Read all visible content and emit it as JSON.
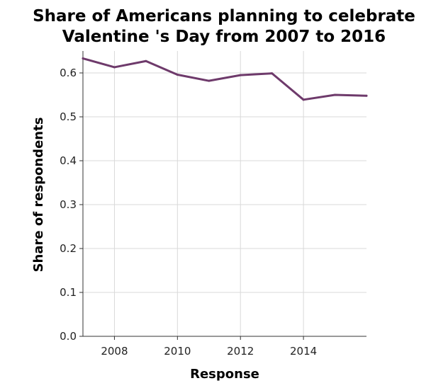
{
  "chart_data": {
    "type": "line",
    "title_lines": [
      "Share of Americans planning to celebrate",
      "Valentine 's Day from 2007 to 2016"
    ],
    "xlabel": "Response",
    "ylabel": "Share of respondents",
    "x": [
      2007,
      2008,
      2009,
      2010,
      2011,
      2012,
      2013,
      2014,
      2015,
      2016
    ],
    "series": [
      {
        "values": [
          0.633,
          0.613,
          0.627,
          0.596,
          0.582,
          0.595,
          0.599,
          0.539,
          0.55,
          0.548
        ],
        "color": "#6e3a6b"
      }
    ],
    "xlim": [
      2007,
      2016
    ],
    "ylim": [
      0,
      0.65
    ],
    "xticks": [
      2008,
      2010,
      2012,
      2014
    ],
    "xtick_labels": [
      "2008",
      "2010",
      "2012",
      "2014"
    ],
    "yticks": [
      0,
      0.1,
      0.2,
      0.3,
      0.4,
      0.5,
      0.6
    ],
    "ytick_labels": [
      "0.0",
      "0.1",
      "0.2",
      "0.3",
      "0.4",
      "0.5",
      "0.6"
    ],
    "grid": true,
    "legend": "none"
  }
}
